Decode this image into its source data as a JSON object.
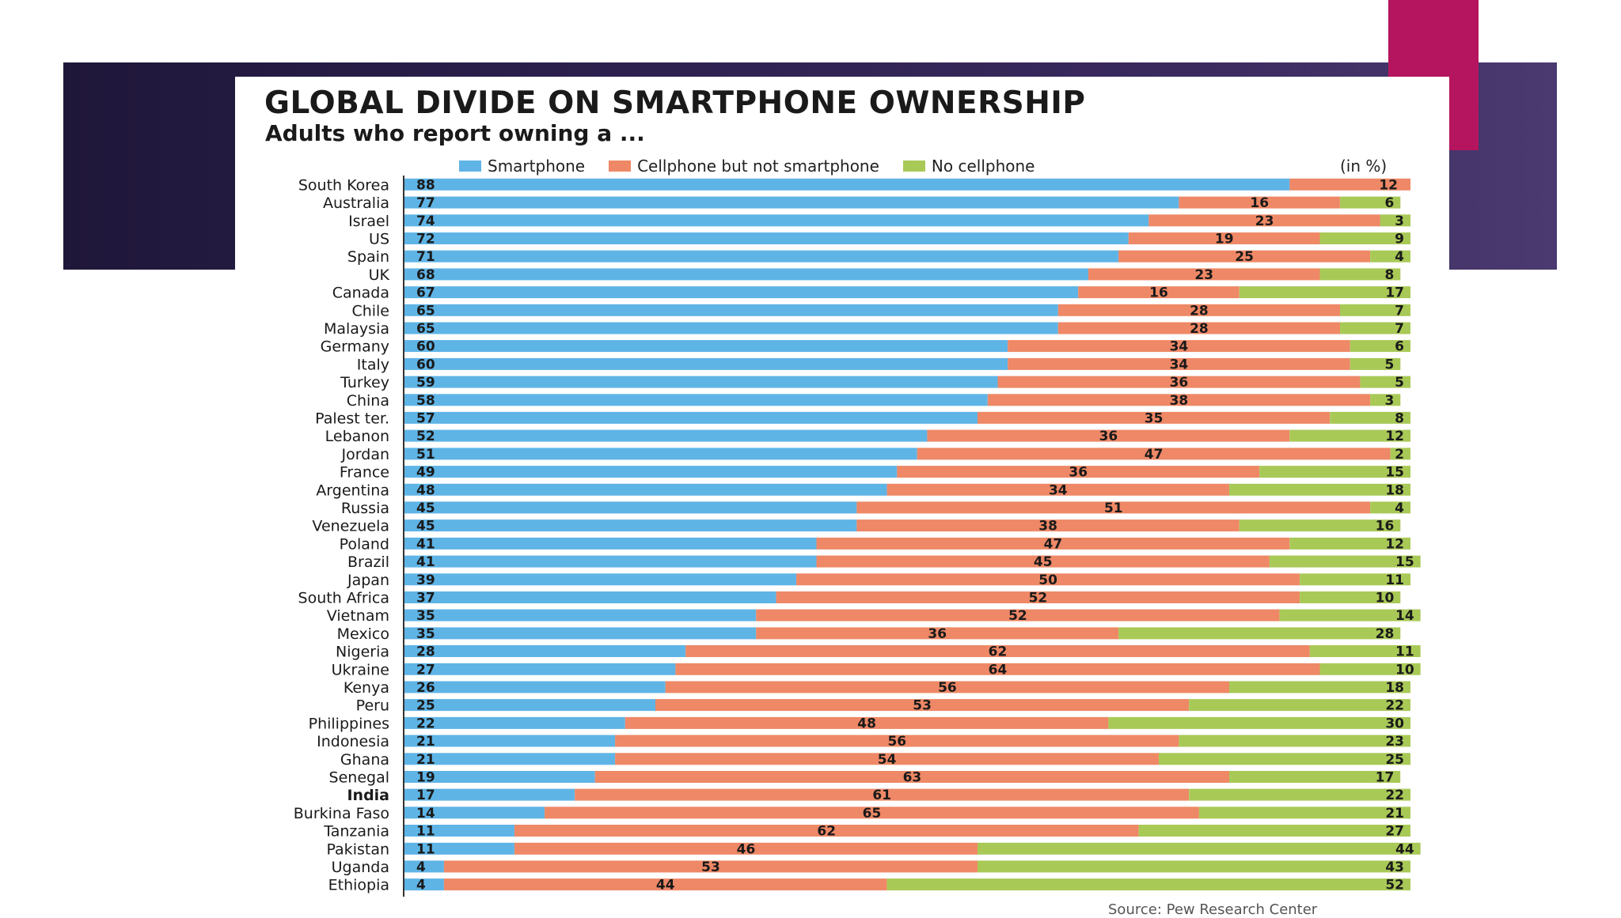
{
  "chart_data": {
    "type": "bar",
    "orientation": "horizontal",
    "stacked": true,
    "title": "GLOBAL DIVIDE ON SMARTPHONE OWNERSHIP",
    "subtitle": "Adults who report owning a ...",
    "unit_label": "(in %)",
    "highlight_category": "India",
    "colors": {
      "smartphone": "#5fb4e6",
      "cellphone": "#ee8866",
      "none": "#a9c957",
      "axis": "#333333",
      "label": "#1a1a1a"
    },
    "categories": [
      "South Korea",
      "Australia",
      "Israel",
      "US",
      "Spain",
      "UK",
      "Canada",
      "Chile",
      "Malaysia",
      "Germany",
      "Italy",
      "Turkey",
      "China",
      "Palest ter.",
      "Lebanon",
      "Jordan",
      "France",
      "Argentina",
      "Russia",
      "Venezuela",
      "Poland",
      "Brazil",
      "Japan",
      "South Africa",
      "Vietnam",
      "Mexico",
      "Nigeria",
      "Ukraine",
      "Kenya",
      "Peru",
      "Philippines",
      "Indonesia",
      "Ghana",
      "Senegal",
      "India",
      "Burkina Faso",
      "Tanzania",
      "Pakistan",
      "Uganda",
      "Ethiopia"
    ],
    "series": [
      {
        "name": "Smartphone",
        "key": "smartphone",
        "values": [
          88,
          77,
          74,
          72,
          71,
          68,
          67,
          65,
          65,
          60,
          60,
          59,
          58,
          57,
          52,
          51,
          49,
          48,
          45,
          45,
          41,
          41,
          39,
          37,
          35,
          35,
          28,
          27,
          26,
          25,
          22,
          21,
          21,
          19,
          17,
          14,
          11,
          11,
          4,
          4
        ]
      },
      {
        "name": "Cellphone but not smartphone",
        "key": "cellphone",
        "values": [
          12,
          16,
          23,
          19,
          25,
          23,
          16,
          28,
          28,
          34,
          34,
          36,
          38,
          35,
          36,
          47,
          36,
          34,
          51,
          38,
          47,
          45,
          50,
          52,
          52,
          36,
          62,
          64,
          56,
          53,
          48,
          56,
          54,
          63,
          61,
          65,
          62,
          46,
          53,
          44
        ]
      },
      {
        "name": "No cellphone",
        "key": "none",
        "values": [
          0,
          6,
          3,
          9,
          4,
          8,
          17,
          7,
          7,
          6,
          5,
          5,
          3,
          8,
          12,
          2,
          15,
          18,
          4,
          16,
          12,
          15,
          11,
          10,
          14,
          28,
          11,
          10,
          18,
          22,
          30,
          23,
          25,
          17,
          22,
          21,
          27,
          44,
          43,
          52
        ]
      }
    ],
    "xlim": [
      0,
      100
    ],
    "footer": "Source: Pew Research Center"
  }
}
